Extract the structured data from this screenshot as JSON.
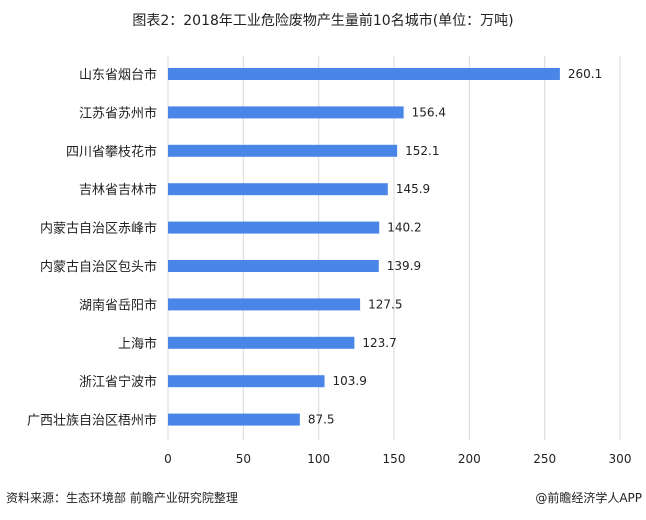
{
  "chart_data": {
    "type": "bar",
    "orientation": "horizontal",
    "title": "图表2：2018年工业危险废物产生量前10名城市(单位：万吨)",
    "categories": [
      "山东省烟台市",
      "江苏省苏州市",
      "四川省攀枝花市",
      "吉林省吉林市",
      "内蒙古自治区赤峰市",
      "内蒙古自治区包头市",
      "湖南省岳阳市",
      "上海市",
      "浙江省宁波市",
      "广西壮族自治区梧州市"
    ],
    "values": [
      260.1,
      156.4,
      152.1,
      145.9,
      140.2,
      139.9,
      127.5,
      123.7,
      103.9,
      87.5
    ],
    "data_labels": [
      "260.1",
      "156.4",
      "152.1",
      "145.9",
      "140.2",
      "139.9",
      "127.5",
      "123.7",
      "103.9",
      "87.5"
    ],
    "xlim": [
      0,
      300
    ],
    "xticks": [
      "0",
      "50",
      "100",
      "150",
      "200",
      "250",
      "300"
    ],
    "grid": "vertical",
    "bar_color": "#4a86e8"
  },
  "footer": {
    "source": "资料来源：生态环境部 前瞻产业研究院整理",
    "credit": "@前瞻经济学人APP"
  }
}
